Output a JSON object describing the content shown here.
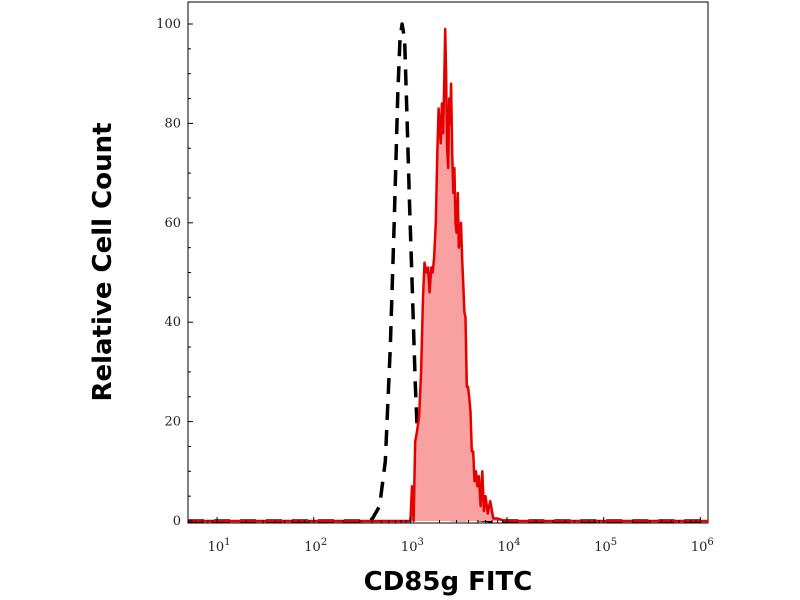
{
  "chart_data": {
    "type": "area",
    "title": "",
    "xlabel": "CD85g FITC",
    "ylabel": "Relative Cell Count",
    "x_scale": "log",
    "xlim": [
      5,
      1200000
    ],
    "ylim": [
      0,
      100
    ],
    "x_ticks": [
      {
        "value": 10,
        "base": "10",
        "exp": "1"
      },
      {
        "value": 100,
        "base": "10",
        "exp": "2"
      },
      {
        "value": 1000,
        "base": "10",
        "exp": "3"
      },
      {
        "value": 10000,
        "base": "10",
        "exp": "4"
      },
      {
        "value": 100000,
        "base": "10",
        "exp": "5"
      },
      {
        "value": 1000000,
        "base": "10",
        "exp": "6"
      }
    ],
    "y_ticks": [
      0,
      20,
      40,
      60,
      80,
      100
    ],
    "grid": false,
    "legend": "none",
    "series": [
      {
        "style": "dashed",
        "color": "#000000",
        "fill": "none",
        "points": [
          [
            5,
            0
          ],
          [
            300,
            0
          ],
          [
            400,
            0.3
          ],
          [
            480,
            3
          ],
          [
            550,
            12
          ],
          [
            620,
            35
          ],
          [
            680,
            60
          ],
          [
            740,
            86
          ],
          [
            780,
            97
          ],
          [
            820,
            100
          ],
          [
            870,
            97
          ],
          [
            920,
            82
          ],
          [
            980,
            64
          ],
          [
            1050,
            46
          ],
          [
            1120,
            28
          ],
          [
            1180,
            18
          ],
          [
            1260,
            10
          ],
          [
            1350,
            5
          ],
          [
            1500,
            2
          ],
          [
            1800,
            0.8
          ],
          [
            2500,
            0.3
          ],
          [
            3500,
            0.3
          ],
          [
            5000,
            0.3
          ],
          [
            7000,
            0
          ],
          [
            1200000,
            0
          ]
        ]
      },
      {
        "style": "solid",
        "color": "#e50000",
        "fill": "#f9a0a0",
        "points": [
          [
            5,
            0
          ],
          [
            1000,
            0
          ],
          [
            1040,
            7
          ],
          [
            1080,
            0
          ],
          [
            1120,
            16
          ],
          [
            1170,
            18
          ],
          [
            1230,
            21
          ],
          [
            1290,
            30
          ],
          [
            1350,
            45
          ],
          [
            1400,
            52
          ],
          [
            1460,
            50
          ],
          [
            1520,
            51
          ],
          [
            1580,
            46
          ],
          [
            1640,
            51
          ],
          [
            1700,
            50
          ],
          [
            1760,
            53
          ],
          [
            1830,
            60
          ],
          [
            1900,
            74
          ],
          [
            1960,
            83
          ],
          [
            2000,
            80
          ],
          [
            2060,
            76
          ],
          [
            2120,
            84
          ],
          [
            2180,
            78
          ],
          [
            2240,
            88
          ],
          [
            2290,
            99
          ],
          [
            2340,
            90
          ],
          [
            2400,
            75
          ],
          [
            2460,
            71
          ],
          [
            2520,
            85
          ],
          [
            2580,
            80
          ],
          [
            2640,
            88
          ],
          [
            2710,
            74
          ],
          [
            2780,
            66
          ],
          [
            2850,
            71
          ],
          [
            2930,
            60
          ],
          [
            3010,
            58
          ],
          [
            3090,
            66
          ],
          [
            3170,
            55
          ],
          [
            3250,
            56
          ],
          [
            3340,
            60
          ],
          [
            3430,
            53
          ],
          [
            3520,
            48
          ],
          [
            3620,
            42
          ],
          [
            3720,
            41
          ],
          [
            3830,
            27
          ],
          [
            3940,
            27
          ],
          [
            4060,
            25
          ],
          [
            4190,
            22
          ],
          [
            4320,
            14
          ],
          [
            4460,
            14
          ],
          [
            4610,
            8
          ],
          [
            4770,
            10
          ],
          [
            4940,
            7
          ],
          [
            5120,
            9
          ],
          [
            5320,
            3
          ],
          [
            5540,
            10
          ],
          [
            5760,
            2
          ],
          [
            6000,
            5
          ],
          [
            6300,
            1.5
          ],
          [
            6700,
            4
          ],
          [
            7200,
            0.5
          ],
          [
            8000,
            0.5
          ],
          [
            9500,
            0
          ],
          [
            1200000,
            0
          ]
        ]
      }
    ]
  }
}
